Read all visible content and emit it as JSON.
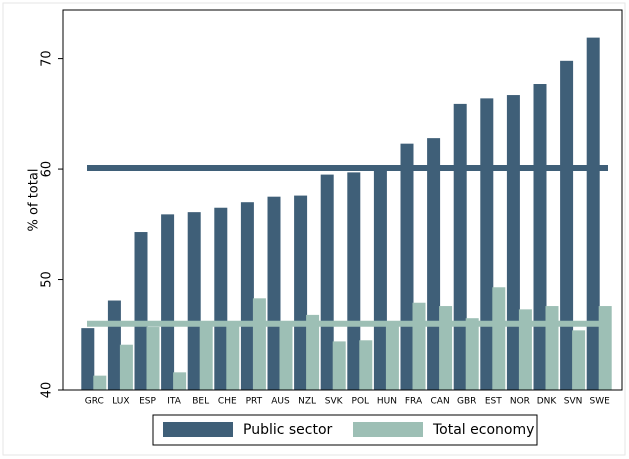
{
  "chart_data": {
    "type": "bar",
    "y_label": "% of total",
    "categories": [
      "GRC",
      "LUX",
      "ESP",
      "ITA",
      "BEL",
      "CHE",
      "PRT",
      "AUS",
      "NZL",
      "SVK",
      "POL",
      "HUN",
      "FRA",
      "CAN",
      "GBR",
      "EST",
      "NOR",
      "DNK",
      "SVN",
      "SWE"
    ],
    "series": [
      {
        "name": "Public sector",
        "color": "#3f5f78",
        "mean": 60.1,
        "values": [
          45.6,
          48.1,
          54.3,
          55.9,
          56.1,
          56.5,
          57.0,
          57.5,
          57.6,
          59.5,
          59.7,
          60.3,
          62.3,
          62.8,
          65.9,
          66.4,
          66.7,
          67.7,
          69.8,
          71.9
        ]
      },
      {
        "name": "Total economy",
        "color": "#9dbfb5",
        "mean": 46.0,
        "values": [
          41.3,
          44.1,
          45.7,
          41.6,
          46.0,
          46.2,
          48.3,
          45.9,
          46.8,
          44.4,
          44.5,
          46.0,
          47.9,
          47.6,
          46.5,
          49.3,
          47.3,
          47.6,
          45.4,
          47.6
        ]
      }
    ],
    "ylim": [
      40,
      74.4
    ],
    "yticks": [
      40,
      50,
      60,
      70
    ],
    "grid": false,
    "legend": "bottom"
  }
}
